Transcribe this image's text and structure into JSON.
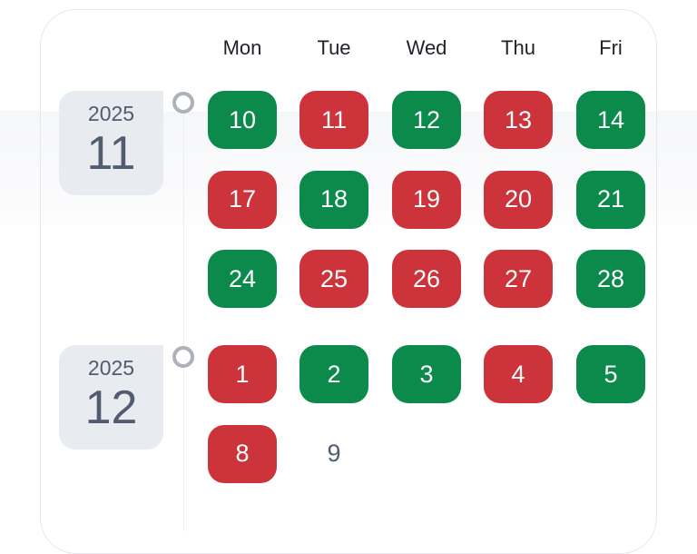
{
  "colors": {
    "green": "#0c8a4c",
    "red": "#cc333b",
    "neutral": "#525c70"
  },
  "weekdays": [
    "Mon",
    "Tue",
    "Wed",
    "Thu",
    "Fri"
  ],
  "months": [
    {
      "year": "2025",
      "month": "11",
      "icon": "timeline-circle-icon",
      "weeks": [
        [
          {
            "d": "10",
            "s": "green"
          },
          {
            "d": "11",
            "s": "red"
          },
          {
            "d": "12",
            "s": "green"
          },
          {
            "d": "13",
            "s": "red"
          },
          {
            "d": "14",
            "s": "green"
          }
        ],
        [
          {
            "d": "17",
            "s": "red"
          },
          {
            "d": "18",
            "s": "green"
          },
          {
            "d": "19",
            "s": "red"
          },
          {
            "d": "20",
            "s": "red"
          },
          {
            "d": "21",
            "s": "green"
          }
        ],
        [
          {
            "d": "24",
            "s": "green"
          },
          {
            "d": "25",
            "s": "red"
          },
          {
            "d": "26",
            "s": "red"
          },
          {
            "d": "27",
            "s": "red"
          },
          {
            "d": "28",
            "s": "green"
          }
        ]
      ]
    },
    {
      "year": "2025",
      "month": "12",
      "icon": "timeline-circle-icon",
      "weeks": [
        [
          {
            "d": "1",
            "s": "red"
          },
          {
            "d": "2",
            "s": "green"
          },
          {
            "d": "3",
            "s": "green"
          },
          {
            "d": "4",
            "s": "red"
          },
          {
            "d": "5",
            "s": "green"
          }
        ],
        [
          {
            "d": "8",
            "s": "red"
          },
          {
            "d": "9",
            "s": "none"
          }
        ]
      ]
    }
  ]
}
